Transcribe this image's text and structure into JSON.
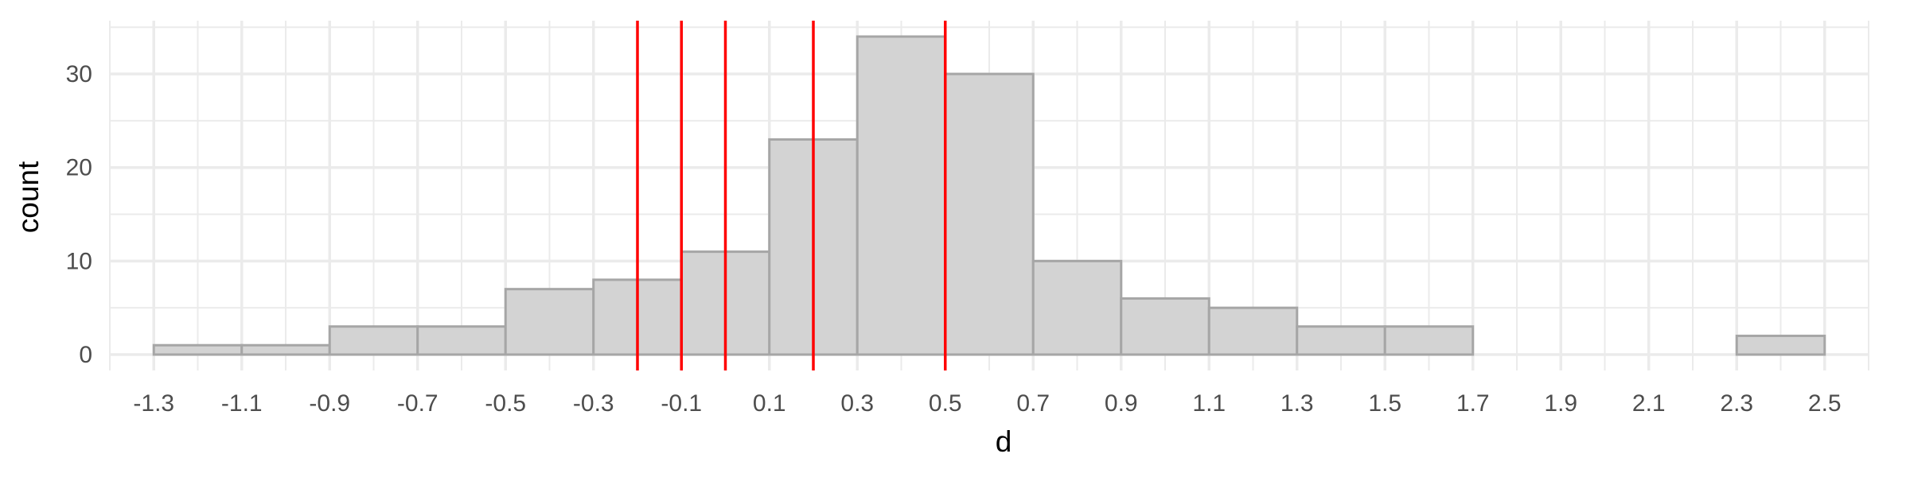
{
  "chart_data": {
    "type": "bar",
    "subtype": "histogram",
    "xlabel": "d",
    "ylabel": "count",
    "bin_width": 0.2,
    "bins": [
      {
        "start": -1.3,
        "end": -1.1,
        "count": 1
      },
      {
        "start": -1.1,
        "end": -0.9,
        "count": 1
      },
      {
        "start": -0.9,
        "end": -0.7,
        "count": 3
      },
      {
        "start": -0.7,
        "end": -0.5,
        "count": 3
      },
      {
        "start": -0.5,
        "end": -0.3,
        "count": 7
      },
      {
        "start": -0.3,
        "end": -0.1,
        "count": 8
      },
      {
        "start": -0.1,
        "end": 0.1,
        "count": 11
      },
      {
        "start": 0.1,
        "end": 0.3,
        "count": 23
      },
      {
        "start": 0.3,
        "end": 0.5,
        "count": 34
      },
      {
        "start": 0.5,
        "end": 0.7,
        "count": 30
      },
      {
        "start": 0.7,
        "end": 0.9,
        "count": 10
      },
      {
        "start": 0.9,
        "end": 1.1,
        "count": 6
      },
      {
        "start": 1.1,
        "end": 1.3,
        "count": 5
      },
      {
        "start": 1.3,
        "end": 1.5,
        "count": 3
      },
      {
        "start": 1.5,
        "end": 1.7,
        "count": 3
      },
      {
        "start": 1.7,
        "end": 1.9,
        "count": 0
      },
      {
        "start": 1.9,
        "end": 2.1,
        "count": 0
      },
      {
        "start": 2.1,
        "end": 2.3,
        "count": 0
      },
      {
        "start": 2.3,
        "end": 2.5,
        "count": 2
      }
    ],
    "vlines": [
      -0.2,
      -0.1,
      0.0,
      0.2,
      0.5
    ],
    "x_ticks": [
      {
        "value": -1.3,
        "label": "-1.3"
      },
      {
        "value": -1.1,
        "label": "-1.1"
      },
      {
        "value": -0.9,
        "label": "-0.9"
      },
      {
        "value": -0.7,
        "label": "-0.7"
      },
      {
        "value": -0.5,
        "label": "-0.5"
      },
      {
        "value": -0.3,
        "label": "-0.3"
      },
      {
        "value": -0.1,
        "label": "-0.1"
      },
      {
        "value": 0.1,
        "label": "0.1"
      },
      {
        "value": 0.3,
        "label": "0.3"
      },
      {
        "value": 0.5,
        "label": "0.5"
      },
      {
        "value": 0.7,
        "label": "0.7"
      },
      {
        "value": 0.9,
        "label": "0.9"
      },
      {
        "value": 1.1,
        "label": "1.1"
      },
      {
        "value": 1.3,
        "label": "1.3"
      },
      {
        "value": 1.5,
        "label": "1.5"
      },
      {
        "value": 1.7,
        "label": "1.7"
      },
      {
        "value": 1.9,
        "label": "1.9"
      },
      {
        "value": 2.1,
        "label": "2.1"
      },
      {
        "value": 2.3,
        "label": "2.3"
      },
      {
        "value": 2.5,
        "label": "2.5"
      }
    ],
    "y_ticks": [
      {
        "value": 0,
        "label": "0"
      },
      {
        "value": 10,
        "label": "10"
      },
      {
        "value": 20,
        "label": "20"
      },
      {
        "value": 30,
        "label": "30"
      }
    ],
    "xlim": [
      -1.4,
      2.6
    ],
    "ylim": [
      -1.7,
      35.7
    ],
    "grid": true,
    "legend": "none",
    "colors": {
      "bar_fill": "#d3d3d3",
      "bar_stroke": "#a6a6a6",
      "vline": "#ff0000",
      "grid": "#ebebeb",
      "tick_text": "#4d4d4d",
      "title_text": "#000000"
    }
  }
}
